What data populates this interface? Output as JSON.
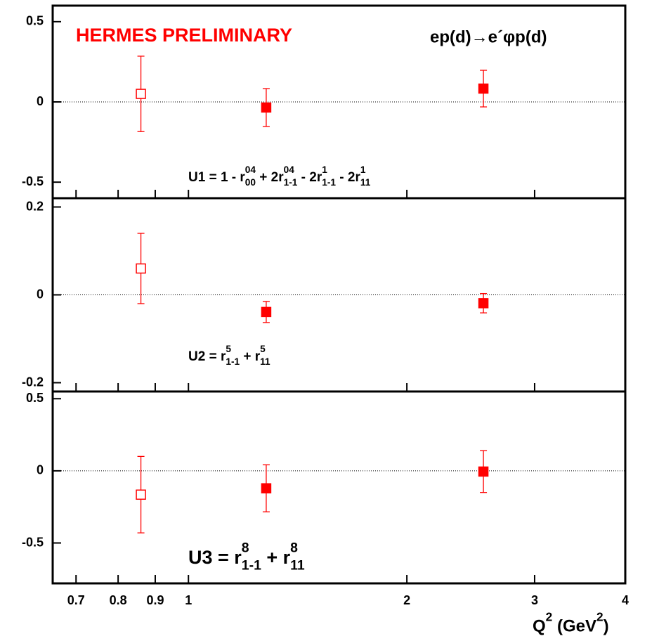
{
  "chart_data": [
    {
      "type": "scatter",
      "title": "ep(d)→e´φp(d)",
      "annotation": "HERMES PRELIMINARY",
      "formula": [
        {
          "text": "U1 = 1 - r"
        },
        {
          "sup": "04",
          "sub": "00"
        },
        {
          "text": " + 2r"
        },
        {
          "sup": "04",
          "sub": "1-1"
        },
        {
          "text": " - 2r"
        },
        {
          "sup": "1",
          "sub": "1-1"
        },
        {
          "text": " - 2r"
        },
        {
          "sup": "1",
          "sub": "11"
        }
      ],
      "x": [
        0.86,
        1.28,
        2.55
      ],
      "values": [
        0.05,
        -0.035,
        0.083
      ],
      "errors": [
        0.235,
        0.118,
        0.114
      ],
      "filled": [
        false,
        true,
        true
      ],
      "color": "#ff0000",
      "xlim": [
        0.65,
        4
      ],
      "xscale": "log",
      "ylim": [
        -0.6,
        0.6
      ],
      "yticks": [
        -0.5,
        0,
        0.5
      ],
      "zero_line": true
    },
    {
      "type": "scatter",
      "formula": [
        {
          "text": "U2 = r"
        },
        {
          "sup": "5",
          "sub": "1-1"
        },
        {
          "text": " + r"
        },
        {
          "sup": "5",
          "sub": "11"
        }
      ],
      "x": [
        0.86,
        1.28,
        2.55
      ],
      "values": [
        0.06,
        -0.039,
        -0.019
      ],
      "errors": [
        0.08,
        0.024,
        0.022
      ],
      "filled": [
        false,
        true,
        true
      ],
      "color": "#ff0000",
      "xlim": [
        0.65,
        4
      ],
      "xscale": "log",
      "ylim": [
        -0.22,
        0.22
      ],
      "yticks": [
        -0.2,
        0,
        0.2
      ],
      "zero_line": true
    },
    {
      "type": "scatter",
      "formula": [
        {
          "text": "U3 = r"
        },
        {
          "sup": "8",
          "sub": "1-1"
        },
        {
          "text": " + r"
        },
        {
          "sup": "8",
          "sub": "11"
        }
      ],
      "x": [
        0.86,
        1.28,
        2.55
      ],
      "values": [
        -0.165,
        -0.121,
        -0.005
      ],
      "errors": [
        0.265,
        0.163,
        0.145
      ],
      "filled": [
        false,
        true,
        true
      ],
      "color": "#ff0000",
      "xlim": [
        0.65,
        4
      ],
      "xscale": "log",
      "ylim": [
        -0.78,
        0.55
      ],
      "yticks": [
        -0.5,
        0,
        0.5
      ],
      "zero_line": true,
      "xticks": [
        0.7,
        0.8,
        0.9,
        1,
        2,
        3,
        4
      ],
      "xlabel": [
        {
          "text": "Q"
        },
        {
          "sup": "2"
        },
        {
          "text": " (GeV"
        },
        {
          "sup": "2"
        },
        {
          "text": ")"
        }
      ]
    }
  ]
}
